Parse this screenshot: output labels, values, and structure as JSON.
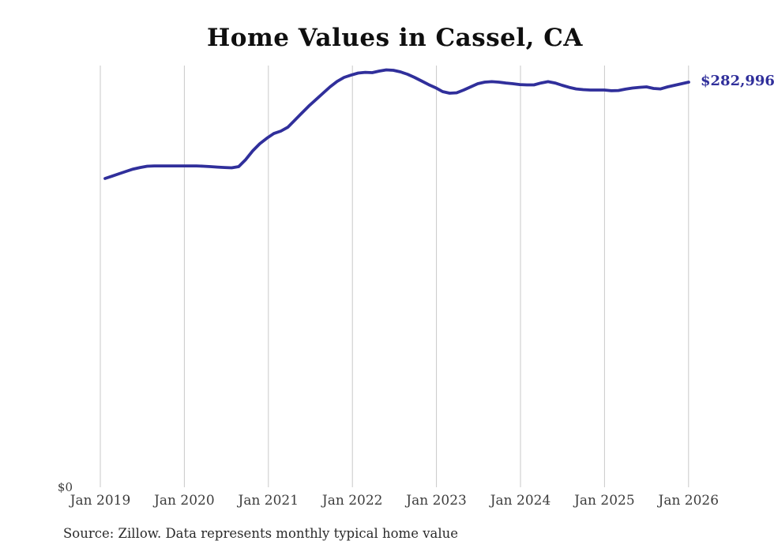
{
  "title": "Home Values in Cassel, CA",
  "end_label": "$282,996",
  "source_note": "Source: Zillow. Data represents monthly typical home value",
  "y_axis": {
    "zero_label": "$0"
  },
  "colors": {
    "line": "#302f9b",
    "value_label": "#302f9b",
    "grid": "#c9c9c9",
    "axis_text": "#3d3d3d",
    "title_text": "#0f0f0f",
    "source_text": "#2b2b2b",
    "background": "#ffffff"
  },
  "chart_data": {
    "type": "line",
    "title": "Home Values in Cassel, CA",
    "series_name": "Monthly typical home value ($)",
    "xlabel": "",
    "ylabel": "",
    "ylim": [
      0,
      294000
    ],
    "grid": "vertical-only",
    "legend": "none",
    "latest_value": 282996,
    "latest_value_label": "$282,996",
    "x_ticks": [
      "Jan 2019",
      "Jan 2020",
      "Jan 2021",
      "Jan 2022",
      "Jan 2023",
      "Jan 2024",
      "Jan 2025",
      "Jan 2026"
    ],
    "x_interval": "monthly",
    "months": [
      "2019-02",
      "2019-03",
      "2019-04",
      "2019-05",
      "2019-06",
      "2019-07",
      "2019-08",
      "2019-09",
      "2019-10",
      "2019-11",
      "2019-12",
      "2020-01",
      "2020-02",
      "2020-03",
      "2020-04",
      "2020-05",
      "2020-06",
      "2020-07",
      "2020-08",
      "2020-09",
      "2020-10",
      "2020-11",
      "2020-12",
      "2021-01",
      "2021-02",
      "2021-03",
      "2021-04",
      "2021-05",
      "2021-06",
      "2021-07",
      "2021-08",
      "2021-09",
      "2021-10",
      "2021-11",
      "2021-12",
      "2022-01",
      "2022-02",
      "2022-03",
      "2022-04",
      "2022-05",
      "2022-06",
      "2022-07",
      "2022-08",
      "2022-09",
      "2022-10",
      "2022-11",
      "2022-12",
      "2023-01",
      "2023-02",
      "2023-03",
      "2023-04",
      "2023-05",
      "2023-06",
      "2023-07",
      "2023-08",
      "2023-09",
      "2023-10",
      "2023-11",
      "2023-12",
      "2024-01",
      "2024-02",
      "2024-03",
      "2024-04",
      "2024-05",
      "2024-06",
      "2024-07",
      "2024-08",
      "2024-09",
      "2024-10",
      "2024-11",
      "2024-12",
      "2025-01",
      "2025-02",
      "2025-03",
      "2025-04",
      "2025-05",
      "2025-06",
      "2025-07",
      "2025-08",
      "2025-09",
      "2025-10",
      "2025-11",
      "2025-12",
      "2026-01"
    ],
    "values": [
      216100,
      217700,
      219400,
      221000,
      222600,
      223700,
      224600,
      224800,
      224800,
      224800,
      224800,
      224800,
      224800,
      224800,
      224600,
      224300,
      224000,
      223700,
      223500,
      224300,
      229200,
      235300,
      240200,
      244000,
      247300,
      249000,
      251700,
      256600,
      261600,
      266500,
      270900,
      275300,
      279700,
      283500,
      286300,
      287900,
      289300,
      289800,
      289600,
      290700,
      291500,
      291200,
      290100,
      288500,
      286300,
      283800,
      281300,
      279100,
      276400,
      275300,
      275600,
      277500,
      279700,
      281900,
      283000,
      283300,
      283000,
      282400,
      281900,
      281300,
      281100,
      281100,
      282400,
      283300,
      282400,
      280800,
      279400,
      278300,
      277800,
      277500,
      277500,
      277500,
      277000,
      277200,
      278100,
      278900,
      279400,
      279700,
      278600,
      278300,
      279700,
      280800,
      281900,
      282996
    ]
  }
}
